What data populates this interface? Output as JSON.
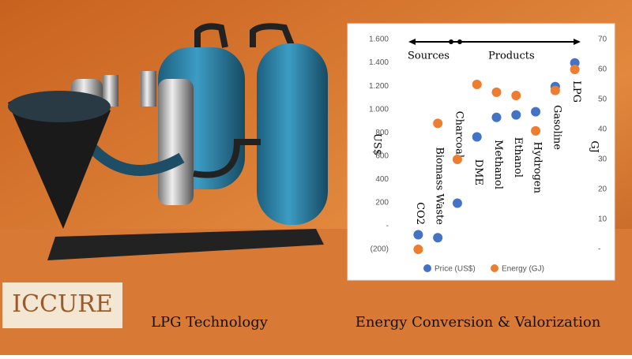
{
  "chart_data": {
    "type": "scatter",
    "categories": [
      "CO2",
      "Biomass Waste",
      "Charcoal",
      "DME",
      "Methanol",
      "Ethanol",
      "Hydrogen",
      "Gasoline",
      "LPG"
    ],
    "series": [
      {
        "name": "Price (US$)",
        "color": "#4472c4",
        "values": [
          -75,
          -100,
          196,
          764,
          932,
          953,
          980,
          1196,
          1399
        ]
      },
      {
        "name": "Energy (GJ)",
        "color": "#ed7d31",
        "axis": "y2",
        "values": [
          0,
          42,
          30,
          55,
          52.4,
          51.3,
          39.5,
          53,
          60
        ]
      }
    ],
    "ylabel": "US$",
    "y2label": "GJ",
    "ylim": [
      -200,
      1600
    ],
    "yticks": [
      {
        "value": -200,
        "label": "(200)"
      },
      {
        "value": 0,
        "label": "-"
      },
      200,
      400,
      600,
      800,
      {
        "value": 1000,
        "label": "1.000"
      },
      {
        "value": 1200,
        "label": "1.200"
      },
      {
        "value": 1400,
        "label": "1.400"
      },
      {
        "value": 1600,
        "label": "1.600"
      }
    ],
    "y2lim": [
      0,
      70
    ],
    "y2ticks": [
      {
        "value": 0,
        "label": "-"
      },
      10,
      20,
      30,
      40,
      50,
      60,
      70
    ],
    "annotations": [
      "Sources",
      "Products"
    ],
    "legend": "bottom"
  },
  "banner": {
    "logo": "ICCURE",
    "left_caption": "LPG Technology",
    "right_caption": "Energy Conversion & Valorization"
  }
}
